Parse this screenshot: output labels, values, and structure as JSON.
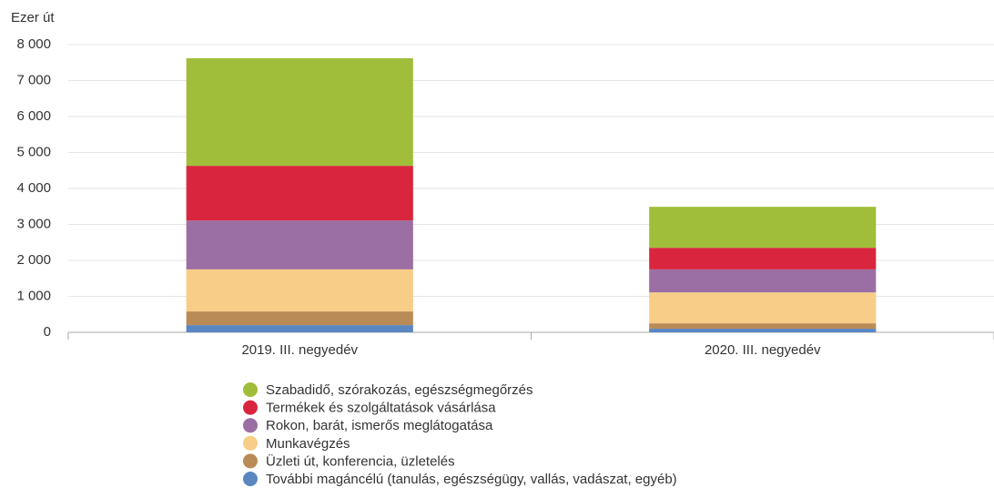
{
  "chart_data": {
    "type": "stacked_bar",
    "y_axis_label": "Ezer út",
    "categories": [
      "2019. III. negyedév",
      "2020. III. negyedév"
    ],
    "series": [
      {
        "name": "Szabadidő, szórakozás, egészségmegőrzés",
        "color": "#a0be3a",
        "values": [
          2990,
          1140
        ]
      },
      {
        "name": "Termékek és szolgáltatások vásárlása",
        "color": "#d9263e",
        "values": [
          1520,
          600
        ]
      },
      {
        "name": "Rokon, barát, ismerős meglátogatása",
        "color": "#9b6fa3",
        "values": [
          1360,
          640
        ]
      },
      {
        "name": "Munkavégzés",
        "color": "#f7cd88",
        "values": [
          1170,
          860
        ]
      },
      {
        "name": "Üzleti út, konferencia, üzletelés",
        "color": "#b98b56",
        "values": [
          380,
          150
        ]
      },
      {
        "name": "További magáncélú (tanulás, egészségügy, vallás, vadászat, egyéb)",
        "color": "#5a86c2",
        "values": [
          200,
          100
        ]
      }
    ],
    "ylim": [
      0,
      8000
    ],
    "yticks": [
      0,
      {
        "value": 1000,
        "label": "1 000"
      },
      {
        "value": 2000,
        "label": "2 000"
      },
      {
        "value": 3000,
        "label": "3 000"
      },
      {
        "value": 4000,
        "label": "4 000"
      },
      {
        "value": 5000,
        "label": "5 000"
      },
      {
        "value": 6000,
        "label": "6 000"
      },
      {
        "value": 7000,
        "label": "7 000"
      },
      {
        "value": 8000,
        "label": "8 000"
      }
    ],
    "grid": true
  }
}
